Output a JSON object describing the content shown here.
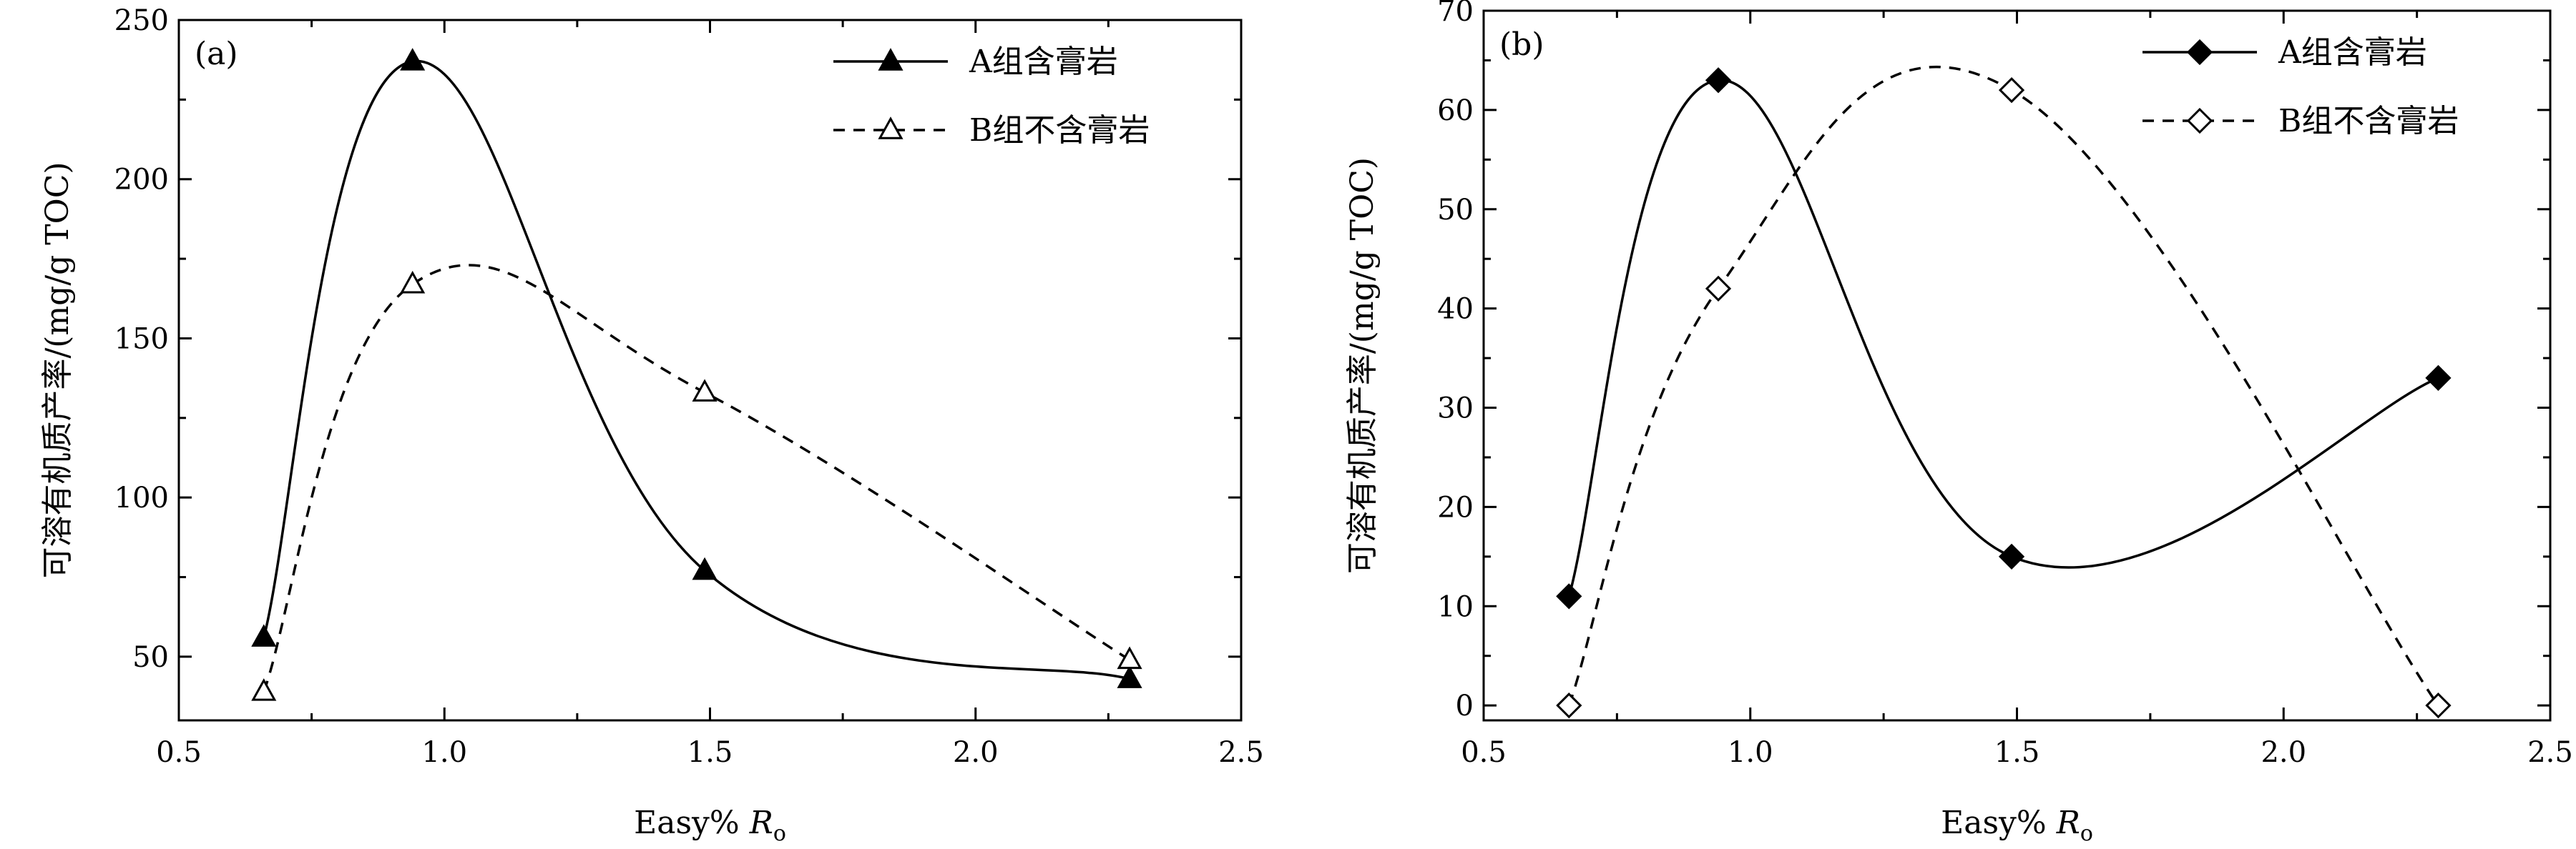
{
  "chart_data": [
    {
      "panel_label": "(a)",
      "type": "line",
      "xlabel": "Easy% Ro",
      "xlabel_main": "Easy% ",
      "xlabel_italic": "R",
      "xlabel_sub": "o",
      "ylabel": "可溶有机质产率/(mg/g TOC)",
      "xlim": [
        0.5,
        2.5
      ],
      "ylim": [
        30,
        250
      ],
      "xticks": [
        0.5,
        1.0,
        1.5,
        2.0,
        2.5
      ],
      "xtick_labels": [
        "0.5",
        "1.0",
        "1.5",
        "2.0",
        "2.5"
      ],
      "yticks": [
        50,
        100,
        150,
        200,
        250
      ],
      "ytick_labels": [
        "50",
        "100",
        "150",
        "200",
        "250"
      ],
      "legend_position": "top-right",
      "series": [
        {
          "name": "A组含膏岩",
          "marker": "filled-triangle",
          "line": "solid",
          "x": [
            0.66,
            0.94,
            1.49,
            2.29
          ],
          "values": [
            56,
            237,
            77,
            43
          ]
        },
        {
          "name": "B组不含膏岩",
          "marker": "open-triangle",
          "line": "dashed",
          "x": [
            0.66,
            0.94,
            1.49,
            2.29
          ],
          "values": [
            39,
            167,
            133,
            49
          ]
        }
      ]
    },
    {
      "panel_label": "(b)",
      "type": "line",
      "xlabel": "Easy% Ro",
      "xlabel_main": "Easy% ",
      "xlabel_italic": "R",
      "xlabel_sub": "o",
      "ylabel": "可溶有机质产率/(mg/g TOC)",
      "xlim": [
        0.5,
        2.5
      ],
      "ylim": [
        -1.5,
        70
      ],
      "xticks": [
        0.5,
        1.0,
        1.5,
        2.0,
        2.5
      ],
      "xtick_labels": [
        "0.5",
        "1.0",
        "1.5",
        "2.0",
        "2.5"
      ],
      "yticks": [
        0,
        10,
        20,
        30,
        40,
        50,
        60,
        70
      ],
      "ytick_labels": [
        "0",
        "10",
        "20",
        "30",
        "40",
        "50",
        "60",
        "70"
      ],
      "legend_position": "top-right",
      "series": [
        {
          "name": "A组含膏岩",
          "marker": "filled-diamond",
          "line": "solid",
          "x": [
            0.66,
            0.94,
            1.49,
            2.29
          ],
          "values": [
            11,
            63,
            15,
            33
          ]
        },
        {
          "name": "B组不含膏岩",
          "marker": "open-diamond",
          "line": "dashed",
          "x": [
            0.66,
            0.94,
            1.49,
            2.29
          ],
          "values": [
            0,
            42,
            62,
            0
          ]
        }
      ]
    }
  ]
}
